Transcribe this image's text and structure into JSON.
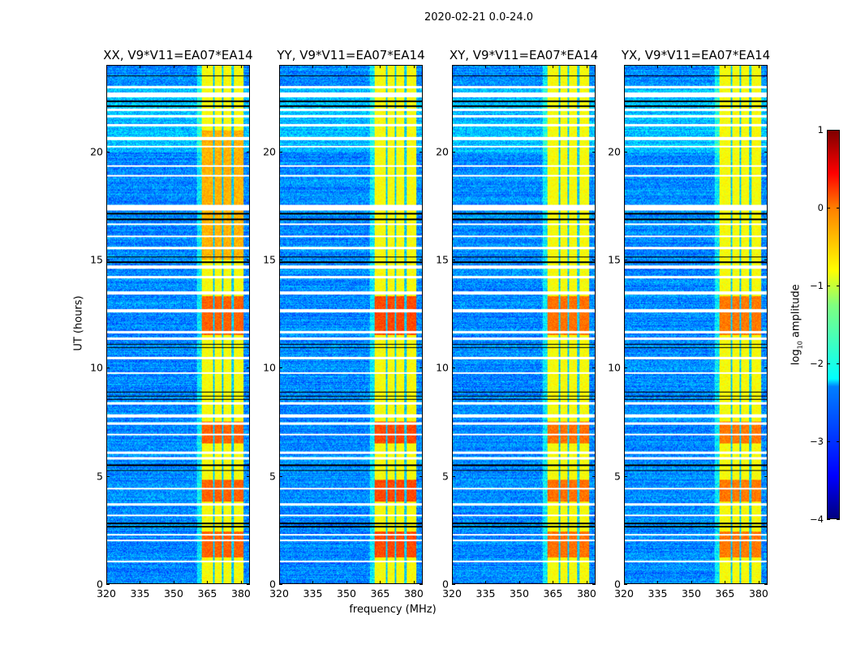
{
  "chart_data": {
    "type": "heatmap",
    "suptitle": "2020-02-21 0.0-24.0",
    "panels": [
      {
        "title": "XX, V9*V11=EA07*EA14",
        "hot_factor": 1.0
      },
      {
        "title": "YY, V9*V11=EA07*EA14",
        "hot_factor": 1.15
      },
      {
        "title": "XY, V9*V11=EA07*EA14",
        "hot_factor": 0.9
      },
      {
        "title": "YX, V9*V11=EA07*EA14",
        "hot_factor": 0.85
      }
    ],
    "xlabel": "frequency (MHz)",
    "ylabel": "UT (hours)",
    "xlim": [
      320,
      384
    ],
    "ylim": [
      0,
      24
    ],
    "xticks": [
      "320",
      "335",
      "350",
      "365",
      "380"
    ],
    "xtick_values": [
      320,
      335,
      350,
      365,
      380
    ],
    "yticks": [
      "0",
      "5",
      "10",
      "15",
      "20"
    ],
    "ytick_values": [
      0,
      5,
      10,
      15,
      20
    ],
    "colorbar": {
      "label_main": "log",
      "label_sub": "10",
      "label_rest": " amplitude",
      "range": [
        -4,
        1
      ],
      "ticks": [
        "1",
        "0",
        "−1",
        "−2",
        "−3",
        "−4"
      ],
      "tick_values": [
        1,
        0,
        -1,
        -2,
        -3,
        -4
      ],
      "colormap": "jet"
    },
    "background_level": -2.7,
    "rfi_band_mhz": [
      362.5,
      381.5
    ],
    "rfi_level": -0.9,
    "rfi_channel_gaps_mhz": [
      [
        367.6,
        368.4
      ],
      [
        371.6,
        372.4
      ],
      [
        376.2,
        377.0
      ]
    ],
    "hot_hours": [
      [
        11.5,
        13.3
      ],
      [
        6.5,
        7.5
      ],
      [
        3.8,
        4.8
      ],
      [
        1.2,
        2.4
      ]
    ],
    "flagged_white_hours": [
      [
        22.95,
        23.05
      ],
      [
        22.55,
        22.75
      ],
      [
        21.9,
        22.0
      ],
      [
        21.6,
        21.7
      ],
      [
        21.2,
        21.3
      ],
      [
        20.55,
        20.7
      ],
      [
        20.2,
        20.28
      ],
      [
        19.3,
        19.38
      ],
      [
        18.85,
        18.93
      ],
      [
        17.3,
        17.55
      ],
      [
        16.6,
        16.68
      ],
      [
        16.05,
        16.12
      ],
      [
        15.5,
        15.6
      ],
      [
        14.6,
        14.75
      ],
      [
        14.15,
        14.25
      ],
      [
        13.4,
        13.55
      ],
      [
        12.55,
        12.7
      ],
      [
        11.6,
        11.7
      ],
      [
        11.3,
        11.4
      ],
      [
        10.4,
        10.5
      ],
      [
        9.7,
        9.8
      ],
      [
        8.3,
        8.4
      ],
      [
        7.7,
        7.85
      ],
      [
        7.35,
        7.45
      ],
      [
        6.85,
        6.92
      ],
      [
        6.0,
        6.1
      ],
      [
        5.75,
        5.85
      ],
      [
        4.35,
        4.42
      ],
      [
        3.6,
        3.7
      ],
      [
        3.1,
        3.2
      ],
      [
        2.2,
        2.3
      ],
      [
        1.95,
        2.02
      ],
      [
        0.98,
        1.05
      ]
    ],
    "flagged_black_hours": [
      [
        23.5,
        23.56
      ],
      [
        22.3,
        22.38
      ],
      [
        22.1,
        22.16
      ],
      [
        17.1,
        17.16
      ],
      [
        16.85,
        16.9
      ],
      [
        15.1,
        15.16
      ],
      [
        14.85,
        14.92
      ],
      [
        11.05,
        11.1
      ],
      [
        10.9,
        10.95
      ],
      [
        8.85,
        8.9
      ],
      [
        8.65,
        8.7
      ],
      [
        8.5,
        8.55
      ],
      [
        5.45,
        5.5
      ],
      [
        5.2,
        5.25
      ],
      [
        2.75,
        2.8
      ],
      [
        2.6,
        2.65
      ]
    ]
  }
}
